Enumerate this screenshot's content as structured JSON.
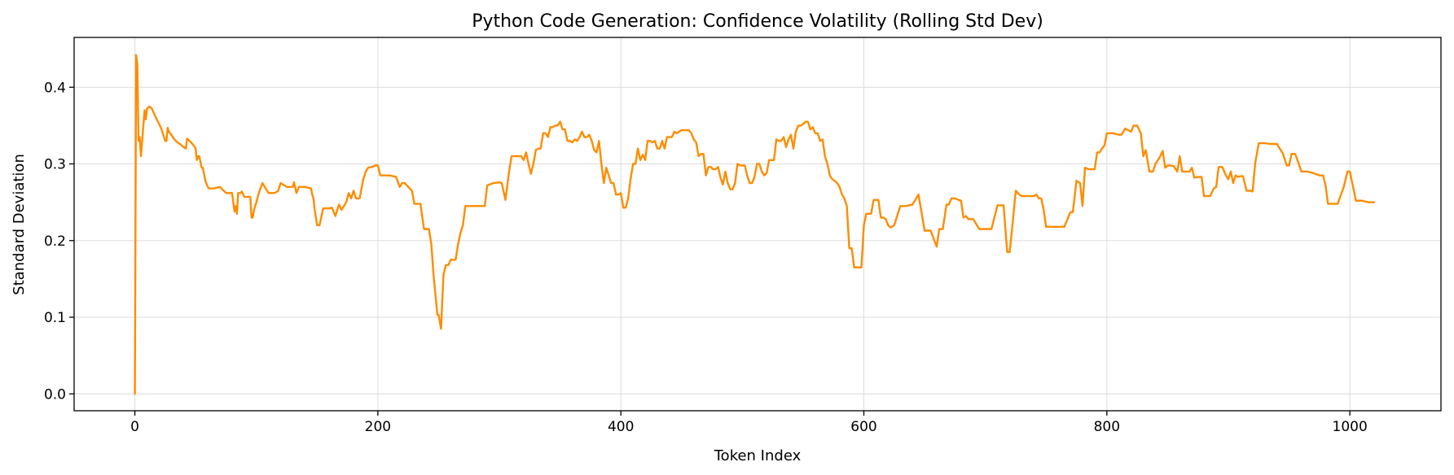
{
  "chart_data": {
    "type": "line",
    "title": "Python Code Generation: Confidence Volatility (Rolling Std Dev)",
    "xlabel": "Token Index",
    "ylabel": "Standard Deviation",
    "xlim": [
      -50,
      1075
    ],
    "ylim": [
      -0.022,
      0.465
    ],
    "xticks": [
      0,
      200,
      400,
      600,
      800,
      1000
    ],
    "yticks": [
      0.0,
      0.1,
      0.2,
      0.3,
      0.4
    ],
    "xtick_labels": [
      "0",
      "200",
      "400",
      "600",
      "800",
      "1000"
    ],
    "ytick_labels": [
      "0.0",
      "0.1",
      "0.2",
      "0.3",
      "0.4"
    ],
    "grid": true,
    "color": "#ff8c00",
    "series": [
      {
        "x": [
          0,
          1,
          2,
          3,
          4,
          5,
          6,
          7,
          8,
          9,
          10,
          12,
          14,
          16,
          18,
          20,
          22,
          24,
          25,
          26,
          27,
          28,
          30,
          32,
          35,
          38,
          40,
          42,
          43,
          45,
          48,
          50,
          51,
          52,
          53,
          55,
          56,
          58,
          60,
          61,
          63,
          65,
          70,
          75,
          80,
          82,
          83,
          84,
          85,
          86,
          87,
          88,
          90,
          92,
          95,
          96,
          97,
          98,
          100,
          102,
          105,
          110,
          115,
          118,
          120,
          125,
          128,
          130,
          131,
          133,
          135,
          140,
          145,
          146,
          147,
          148,
          150,
          152,
          155,
          158,
          160,
          162,
          163,
          165,
          168,
          170,
          172,
          174,
          176,
          178,
          180,
          182,
          185,
          188,
          190,
          192,
          195,
          198,
          200,
          202,
          205,
          210,
          215,
          218,
          220,
          222,
          225,
          228,
          230,
          232,
          235,
          238,
          240,
          242,
          244,
          246,
          248,
          249,
          250,
          252,
          254,
          256,
          258,
          260,
          262,
          264,
          266,
          268,
          270,
          272,
          274,
          276,
          278,
          280,
          285,
          288,
          290,
          295,
          300,
          302,
          305,
          308,
          310,
          312,
          314,
          316,
          318,
          320,
          322,
          324,
          326,
          328,
          330,
          332,
          334,
          336,
          338,
          340,
          342,
          344,
          346,
          348,
          350,
          352,
          354,
          356,
          358,
          360,
          362,
          364,
          366,
          368,
          370,
          372,
          374,
          376,
          378,
          380,
          382,
          384,
          386,
          388,
          390,
          392,
          394,
          396,
          398,
          400,
          402,
          404,
          406,
          408,
          410,
          412,
          414,
          416,
          418,
          420,
          422,
          424,
          426,
          428,
          430,
          432,
          434,
          436,
          438,
          440,
          442,
          444,
          446,
          448,
          450,
          452,
          454,
          456,
          458,
          460,
          462,
          464,
          466,
          468,
          470,
          472,
          474,
          476,
          478,
          480,
          482,
          484,
          486,
          488,
          490,
          492,
          494,
          496,
          498,
          500,
          502,
          504,
          506,
          508,
          510,
          512,
          514,
          516,
          518,
          520,
          522,
          524,
          526,
          528,
          530,
          532,
          534,
          536,
          538,
          540,
          542,
          544,
          546,
          548,
          550,
          552,
          554,
          556,
          558,
          560,
          562,
          564,
          566,
          568,
          570,
          572,
          574,
          576,
          578,
          580,
          582,
          584,
          586,
          588,
          590,
          592,
          594,
          596,
          598,
          600,
          602,
          604,
          606,
          608,
          610,
          612,
          614,
          616,
          618,
          620,
          622,
          625,
          630,
          635,
          640,
          645,
          650,
          652,
          655,
          658,
          660,
          662,
          665,
          668,
          670,
          672,
          675,
          678,
          680,
          682,
          684,
          686,
          690,
          695,
          700,
          705,
          710,
          712,
          715,
          718,
          720,
          722,
          725,
          728,
          730,
          732,
          735,
          738,
          740,
          742,
          744,
          746,
          748,
          750,
          755,
          760,
          765,
          770,
          772,
          775,
          778,
          780,
          782,
          785,
          788,
          790,
          792,
          794,
          796,
          798,
          800,
          805,
          810,
          812,
          815,
          820,
          822,
          825,
          828,
          830,
          832,
          835,
          838,
          840,
          842,
          844,
          846,
          848,
          850,
          852,
          855,
          858,
          860,
          862,
          865,
          868,
          870,
          872,
          875,
          878,
          880,
          882,
          885,
          888,
          890,
          892,
          895,
          898,
          900,
          902,
          904,
          906,
          908,
          910,
          912,
          915,
          918,
          920,
          922,
          925,
          928,
          930,
          935,
          940,
          945,
          948,
          950,
          952,
          955,
          958,
          960,
          962,
          965,
          970,
          975,
          978,
          980,
          982,
          985,
          990,
          995,
          998,
          1000,
          1002,
          1005,
          1010,
          1015,
          1020
        ],
        "y": [
          0.0,
          0.442,
          0.43,
          0.33,
          0.335,
          0.31,
          0.33,
          0.35,
          0.37,
          0.358,
          0.372,
          0.375,
          0.372,
          0.365,
          0.358,
          0.352,
          0.345,
          0.335,
          0.33,
          0.33,
          0.347,
          0.342,
          0.338,
          0.333,
          0.328,
          0.325,
          0.322,
          0.32,
          0.333,
          0.33,
          0.325,
          0.32,
          0.305,
          0.31,
          0.31,
          0.295,
          0.295,
          0.278,
          0.27,
          0.268,
          0.268,
          0.268,
          0.27,
          0.262,
          0.262,
          0.238,
          0.245,
          0.235,
          0.262,
          0.262,
          0.262,
          0.264,
          0.257,
          0.257,
          0.257,
          0.23,
          0.23,
          0.24,
          0.25,
          0.262,
          0.275,
          0.262,
          0.262,
          0.265,
          0.275,
          0.27,
          0.27,
          0.27,
          0.276,
          0.262,
          0.27,
          0.27,
          0.268,
          0.26,
          0.255,
          0.24,
          0.22,
          0.22,
          0.242,
          0.242,
          0.242,
          0.243,
          0.24,
          0.232,
          0.247,
          0.24,
          0.245,
          0.25,
          0.262,
          0.255,
          0.265,
          0.255,
          0.255,
          0.28,
          0.29,
          0.295,
          0.296,
          0.298,
          0.298,
          0.285,
          0.285,
          0.285,
          0.283,
          0.27,
          0.275,
          0.275,
          0.27,
          0.265,
          0.248,
          0.248,
          0.248,
          0.215,
          0.215,
          0.215,
          0.195,
          0.152,
          0.12,
          0.103,
          0.103,
          0.085,
          0.155,
          0.168,
          0.168,
          0.175,
          0.175,
          0.175,
          0.195,
          0.21,
          0.22,
          0.245,
          0.245,
          0.245,
          0.245,
          0.245,
          0.245,
          0.245,
          0.272,
          0.275,
          0.276,
          0.275,
          0.253,
          0.29,
          0.31,
          0.31,
          0.31,
          0.31,
          0.31,
          0.305,
          0.315,
          0.3,
          0.287,
          0.3,
          0.318,
          0.32,
          0.32,
          0.34,
          0.34,
          0.335,
          0.348,
          0.348,
          0.35,
          0.35,
          0.355,
          0.345,
          0.345,
          0.33,
          0.33,
          0.328,
          0.332,
          0.33,
          0.335,
          0.342,
          0.335,
          0.335,
          0.338,
          0.33,
          0.318,
          0.315,
          0.33,
          0.3,
          0.275,
          0.295,
          0.285,
          0.275,
          0.275,
          0.26,
          0.26,
          0.262,
          0.243,
          0.243,
          0.255,
          0.28,
          0.3,
          0.3,
          0.32,
          0.305,
          0.312,
          0.305,
          0.33,
          0.33,
          0.328,
          0.33,
          0.32,
          0.32,
          0.33,
          0.32,
          0.335,
          0.335,
          0.335,
          0.342,
          0.34,
          0.342,
          0.344,
          0.344,
          0.344,
          0.344,
          0.34,
          0.332,
          0.328,
          0.31,
          0.313,
          0.313,
          0.285,
          0.296,
          0.296,
          0.293,
          0.293,
          0.296,
          0.282,
          0.273,
          0.29,
          0.275,
          0.267,
          0.267,
          0.275,
          0.3,
          0.298,
          0.298,
          0.298,
          0.285,
          0.275,
          0.275,
          0.283,
          0.3,
          0.3,
          0.29,
          0.285,
          0.288,
          0.305,
          0.305,
          0.305,
          0.332,
          0.33,
          0.33,
          0.335,
          0.322,
          0.332,
          0.338,
          0.32,
          0.342,
          0.35,
          0.35,
          0.352,
          0.355,
          0.355,
          0.345,
          0.348,
          0.34,
          0.34,
          0.33,
          0.332,
          0.31,
          0.3,
          0.285,
          0.28,
          0.278,
          0.275,
          0.27,
          0.26,
          0.255,
          0.245,
          0.19,
          0.19,
          0.165,
          0.165,
          0.165,
          0.165,
          0.22,
          0.235,
          0.235,
          0.235,
          0.253,
          0.253,
          0.253,
          0.23,
          0.23,
          0.228,
          0.22,
          0.217,
          0.22,
          0.245,
          0.245,
          0.247,
          0.26,
          0.213,
          0.213,
          0.213,
          0.2,
          0.192,
          0.215,
          0.215,
          0.247,
          0.247,
          0.255,
          0.255,
          0.253,
          0.252,
          0.23,
          0.232,
          0.228,
          0.228,
          0.215,
          0.215,
          0.215,
          0.246,
          0.246,
          0.246,
          0.185,
          0.185,
          0.215,
          0.265,
          0.26,
          0.258,
          0.258,
          0.258,
          0.258,
          0.258,
          0.26,
          0.255,
          0.255,
          0.24,
          0.218,
          0.218,
          0.218,
          0.218,
          0.237,
          0.237,
          0.278,
          0.275,
          0.245,
          0.295,
          0.293,
          0.293,
          0.293,
          0.315,
          0.315,
          0.32,
          0.324,
          0.34,
          0.34,
          0.338,
          0.338,
          0.346,
          0.342,
          0.35,
          0.35,
          0.34,
          0.31,
          0.318,
          0.29,
          0.29,
          0.3,
          0.305,
          0.31,
          0.317,
          0.295,
          0.298,
          0.298,
          0.297,
          0.29,
          0.31,
          0.29,
          0.29,
          0.29,
          0.295,
          0.282,
          0.283,
          0.283,
          0.258,
          0.258,
          0.258,
          0.268,
          0.27,
          0.296,
          0.296,
          0.285,
          0.28,
          0.29,
          0.275,
          0.285,
          0.283,
          0.284,
          0.284,
          0.265,
          0.265,
          0.264,
          0.3,
          0.327,
          0.327,
          0.327,
          0.326,
          0.326,
          0.313,
          0.298,
          0.298,
          0.313,
          0.313,
          0.3,
          0.29,
          0.29,
          0.29,
          0.288,
          0.285,
          0.285,
          0.272,
          0.248,
          0.248,
          0.248,
          0.27,
          0.29,
          0.29,
          0.275,
          0.252,
          0.252,
          0.25,
          0.25
        ]
      }
    ]
  }
}
